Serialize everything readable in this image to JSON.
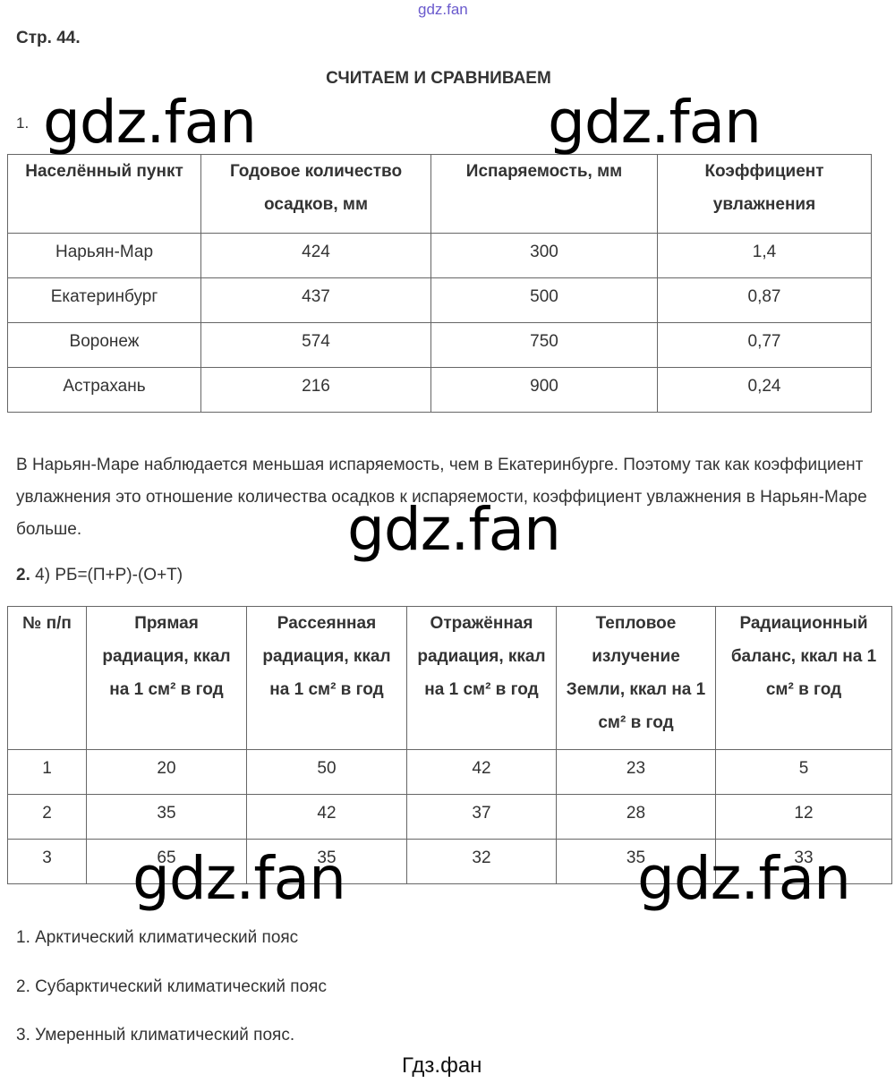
{
  "watermark_top": "gdz.fan",
  "watermark": "gdz.fan",
  "page_label": "Стр. 44.",
  "section_title": "СЧИТАЕМ И СРАВНИВАЕМ",
  "task1": {
    "number": "1.",
    "headers": [
      "Населённый пункт",
      "Годовое количество осадков, мм",
      "Испаряемость, мм",
      "Коэффициент увлажнения"
    ],
    "rows": [
      [
        "Нарьян-Мар",
        "424",
        "300",
        "1,4"
      ],
      [
        "Екатеринбург",
        "437",
        "500",
        "0,87"
      ],
      [
        "Воронеж",
        "574",
        "750",
        "0,77"
      ],
      [
        "Астрахань",
        "216",
        "900",
        "0,24"
      ]
    ],
    "explanation": "В Нарьян-Маре наблюдается меньшая испаряемость, чем в Екатеринбурге. Поэтому так как коэффициент увлажнения это отношение количества осадков к испаряемости, коэффициент увлажнения в Нарьян-Маре больше."
  },
  "task2": {
    "number": "2.",
    "formula": "4) РБ=(П+Р)-(О+Т)",
    "headers": [
      "№ п/п",
      "Прямая радиация, ккал на 1 см² в год",
      "Рассеянная радиация, ккал на 1 см² в год",
      "Отражённая радиация, ккал на 1 см² в год",
      "Тепловое излучение Земли, ккал на 1 см² в год",
      "Радиационный баланс, ккал на 1 см² в год"
    ],
    "rows": [
      [
        "1",
        "20",
        "50",
        "42",
        "23",
        "5"
      ],
      [
        "2",
        "35",
        "42",
        "37",
        "28",
        "12"
      ],
      [
        "3",
        "65",
        "35",
        "32",
        "35",
        "33"
      ]
    ],
    "answers": [
      "1. Арктический климатический пояс",
      "2. Субарктический климатический пояс",
      "3. Умеренный климатический пояс."
    ]
  },
  "footer": "Гдз.фан"
}
